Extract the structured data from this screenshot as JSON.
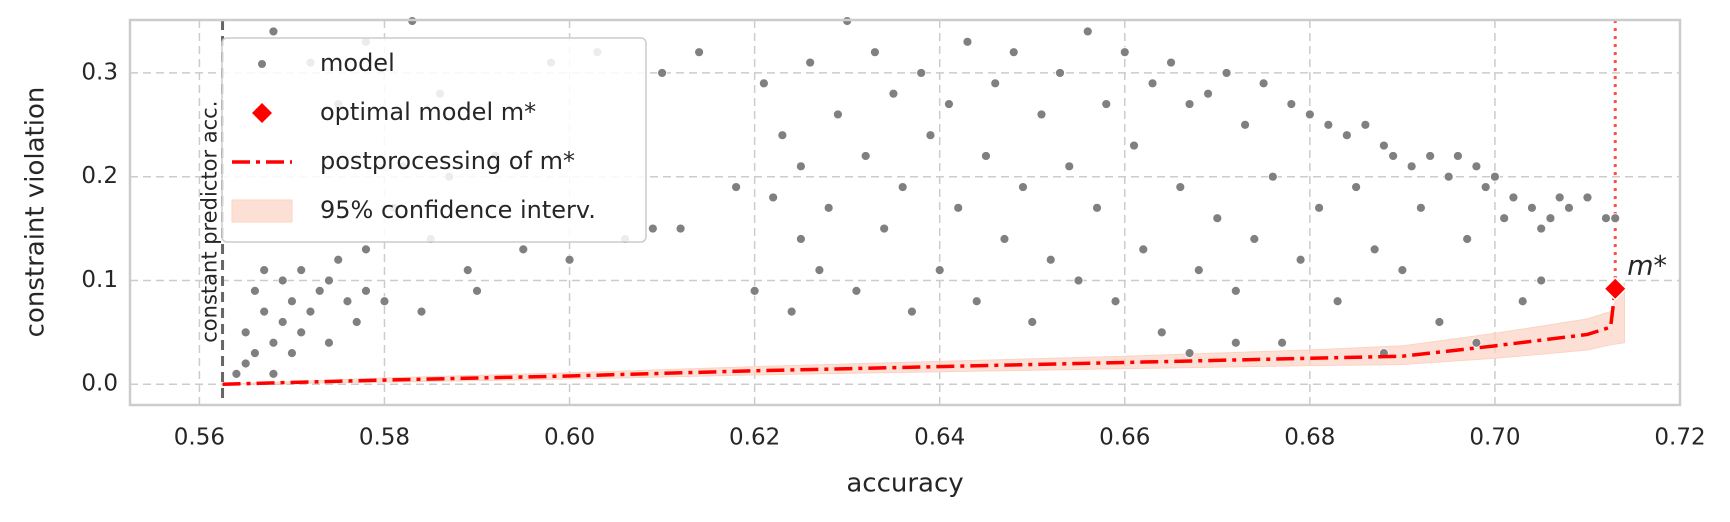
{
  "chart_data": {
    "type": "scatter",
    "x_label": "accuracy",
    "y_label": "constraint violation",
    "xlim": [
      0.5525,
      0.72
    ],
    "ylim": [
      -0.02,
      0.351
    ],
    "xticks": [
      {
        "value": 0.56,
        "label": "0.56"
      },
      {
        "value": 0.58,
        "label": "0.58"
      },
      {
        "value": 0.6,
        "label": "0.60"
      },
      {
        "value": 0.62,
        "label": "0.62"
      },
      {
        "value": 0.64,
        "label": "0.64"
      },
      {
        "value": 0.66,
        "label": "0.66"
      },
      {
        "value": 0.68,
        "label": "0.68"
      },
      {
        "value": 0.7,
        "label": "0.70"
      },
      {
        "value": 0.72,
        "label": "0.72"
      }
    ],
    "yticks": [
      {
        "value": 0,
        "label": "0.0"
      },
      0.1,
      0.2,
      0.3
    ],
    "grid": true,
    "legend": "upper left",
    "series": [
      {
        "name": "model",
        "kind": "points",
        "color": "#808080",
        "x": [
          0.564,
          0.565,
          0.565,
          0.566,
          0.566,
          0.567,
          0.567,
          0.568,
          0.568,
          0.569,
          0.569,
          0.57,
          0.57,
          0.571,
          0.571,
          0.572,
          0.573,
          0.574,
          0.574,
          0.575,
          0.576,
          0.577,
          0.578,
          0.578,
          0.58,
          0.581,
          0.582,
          0.584,
          0.585,
          0.586,
          0.587,
          0.589,
          0.59,
          0.568,
          0.572,
          0.575,
          0.578,
          0.583,
          0.592,
          0.595,
          0.598,
          0.6,
          0.603,
          0.606,
          0.609,
          0.61,
          0.612,
          0.614,
          0.618,
          0.62,
          0.621,
          0.622,
          0.623,
          0.624,
          0.625,
          0.625,
          0.626,
          0.627,
          0.628,
          0.629,
          0.63,
          0.631,
          0.632,
          0.633,
          0.634,
          0.635,
          0.636,
          0.637,
          0.638,
          0.639,
          0.64,
          0.641,
          0.642,
          0.643,
          0.644,
          0.645,
          0.646,
          0.647,
          0.648,
          0.649,
          0.65,
          0.651,
          0.652,
          0.653,
          0.654,
          0.655,
          0.656,
          0.657,
          0.658,
          0.659,
          0.66,
          0.661,
          0.662,
          0.663,
          0.664,
          0.665,
          0.666,
          0.667,
          0.668,
          0.669,
          0.67,
          0.671,
          0.672,
          0.673,
          0.674,
          0.675,
          0.676,
          0.677,
          0.678,
          0.679,
          0.68,
          0.681,
          0.682,
          0.683,
          0.684,
          0.685,
          0.686,
          0.687,
          0.688,
          0.689,
          0.69,
          0.691,
          0.692,
          0.693,
          0.694,
          0.695,
          0.696,
          0.697,
          0.698,
          0.699,
          0.7,
          0.701,
          0.702,
          0.703,
          0.704,
          0.705,
          0.706,
          0.707,
          0.708,
          0.71,
          0.712,
          0.713,
          0.688,
          0.672,
          0.667,
          0.698,
          0.705
        ],
        "values": [
          0.01,
          0.02,
          0.05,
          0.03,
          0.09,
          0.07,
          0.11,
          0.01,
          0.04,
          0.06,
          0.1,
          0.03,
          0.08,
          0.05,
          0.11,
          0.07,
          0.09,
          0.04,
          0.1,
          0.12,
          0.08,
          0.06,
          0.09,
          0.13,
          0.08,
          0.17,
          0.21,
          0.07,
          0.14,
          0.28,
          0.2,
          0.11,
          0.09,
          0.34,
          0.31,
          0.27,
          0.33,
          0.35,
          0.22,
          0.13,
          0.31,
          0.12,
          0.32,
          0.14,
          0.15,
          0.3,
          0.15,
          0.32,
          0.19,
          0.09,
          0.29,
          0.18,
          0.24,
          0.07,
          0.14,
          0.21,
          0.31,
          0.11,
          0.17,
          0.26,
          0.35,
          0.09,
          0.22,
          0.32,
          0.15,
          0.28,
          0.19,
          0.07,
          0.3,
          0.24,
          0.11,
          0.27,
          0.17,
          0.33,
          0.08,
          0.22,
          0.29,
          0.14,
          0.32,
          0.19,
          0.06,
          0.26,
          0.12,
          0.3,
          0.21,
          0.1,
          0.34,
          0.17,
          0.27,
          0.08,
          0.32,
          0.23,
          0.13,
          0.29,
          0.05,
          0.31,
          0.19,
          0.27,
          0.11,
          0.28,
          0.16,
          0.3,
          0.09,
          0.25,
          0.14,
          0.29,
          0.2,
          0.04,
          0.27,
          0.12,
          0.26,
          0.17,
          0.25,
          0.08,
          0.24,
          0.19,
          0.25,
          0.13,
          0.23,
          0.22,
          0.11,
          0.21,
          0.17,
          0.22,
          0.06,
          0.2,
          0.22,
          0.14,
          0.21,
          0.19,
          0.2,
          0.16,
          0.18,
          0.08,
          0.17,
          0.15,
          0.16,
          0.18,
          0.17,
          0.18,
          0.16,
          0.16,
          0.03,
          0.04,
          0.03,
          0.04,
          0.1
        ]
      },
      {
        "name": "optimal model m*",
        "kind": "diamond",
        "color": "#ff0000",
        "x": [
          0.713
        ],
        "values": [
          0.092
        ]
      },
      {
        "name": "postprocessing of m*",
        "kind": "line",
        "color": "#ff0000",
        "x": [
          0.5625,
          0.58,
          0.6,
          0.62,
          0.64,
          0.66,
          0.68,
          0.69,
          0.7,
          0.71,
          0.7125,
          0.713
        ],
        "values": [
          0.0,
          0.004,
          0.008,
          0.013,
          0.017,
          0.021,
          0.025,
          0.027,
          0.037,
          0.048,
          0.055,
          0.092
        ]
      },
      {
        "name": "95% confidence interv.",
        "kind": "band",
        "color": "#fcd3c3",
        "x": [
          0.5625,
          0.58,
          0.6,
          0.62,
          0.64,
          0.66,
          0.68,
          0.69,
          0.7,
          0.71,
          0.7125,
          0.714
        ],
        "lower": [
          0.0,
          0.002,
          0.005,
          0.009,
          0.012,
          0.015,
          0.018,
          0.019,
          0.025,
          0.033,
          0.038,
          0.04
        ],
        "upper": [
          0.0,
          0.006,
          0.011,
          0.017,
          0.022,
          0.027,
          0.033,
          0.037,
          0.049,
          0.063,
          0.07,
          0.098
        ]
      }
    ],
    "vlines": [
      {
        "x": 0.5625,
        "color": "#666666",
        "style": "dashed",
        "label": "constant predictor acc."
      },
      {
        "x": 0.713,
        "color": "#ff4d4d",
        "style": "dotted"
      }
    ],
    "annotations": [
      {
        "text": "m*",
        "x": 0.713,
        "y": 0.092
      }
    ]
  }
}
